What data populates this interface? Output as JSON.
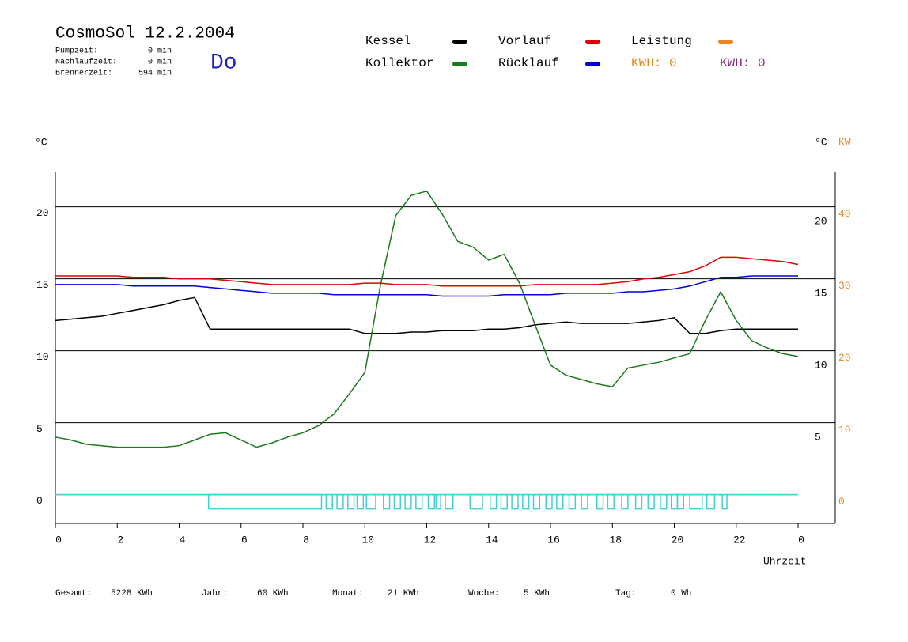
{
  "header": {
    "title": "CosmoSol 12.2.2004",
    "day": "Do",
    "stats": [
      {
        "label": "Pumpzeit:",
        "value": "0 min"
      },
      {
        "label": "Nachlaufzeit:",
        "value": "0 min"
      },
      {
        "label": "Brennerzeit:",
        "value": "594 min"
      }
    ]
  },
  "legend_extra": [
    {
      "text": "KWH: 0",
      "color": "#e08a1e"
    },
    {
      "text": "KWH: 0",
      "color": "#803080"
    }
  ],
  "footer": [
    {
      "label": "Gesamt:",
      "value": "5228 KWh"
    },
    {
      "label": "Jahr:",
      "value": "60 KWh"
    },
    {
      "label": "Monat:",
      "value": "21 KWh"
    },
    {
      "label": "Woche:",
      "value": "5 KWh"
    },
    {
      "label": "Tag:",
      "value": "0 Wh"
    }
  ],
  "chart_data": {
    "type": "line",
    "xlabel": "Uhrzeit",
    "ylabel": "°C",
    "y3label": "°C",
    "y2label": "KW",
    "y2color": "#e08a1e",
    "x": [
      0,
      0.5,
      1,
      1.5,
      2,
      2.5,
      3,
      3.5,
      4,
      4.5,
      5,
      5.5,
      6,
      6.5,
      7,
      7.5,
      8,
      8.5,
      9,
      9.5,
      10,
      10.5,
      11,
      11.5,
      12,
      12.5,
      13,
      13.5,
      14,
      14.5,
      15,
      15.5,
      16,
      16.5,
      17,
      17.5,
      18,
      18.5,
      19,
      19.5,
      20,
      20.5,
      21,
      21.5,
      22,
      22.5,
      23,
      23.5,
      24
    ],
    "xlim": [
      0,
      25.2
    ],
    "xticks": [
      0,
      2,
      4,
      6,
      8,
      10,
      12,
      14,
      16,
      18,
      20,
      22,
      {
        "value": 24,
        "label": "0"
      }
    ],
    "ylim": [
      -2,
      22.4
    ],
    "yticks": [
      0,
      5,
      10,
      15,
      20
    ],
    "y3lim": [
      -1,
      23.4
    ],
    "y3ticks": [
      5,
      10,
      15,
      20
    ],
    "y2lim": [
      -4,
      44.8
    ],
    "y2ticks": [
      0,
      10,
      20,
      30,
      40
    ],
    "grid": true,
    "series": [
      {
        "name": "Kessel",
        "color": "#000000",
        "values": [
          12.1,
          12.2,
          12.3,
          12.4,
          12.6,
          12.8,
          13.0,
          13.2,
          13.5,
          13.7,
          11.5,
          11.5,
          11.5,
          11.5,
          11.5,
          11.5,
          11.5,
          11.5,
          11.5,
          11.5,
          11.2,
          11.2,
          11.2,
          11.3,
          11.3,
          11.4,
          11.4,
          11.4,
          11.5,
          11.5,
          11.6,
          11.8,
          11.9,
          12.0,
          11.9,
          11.9,
          11.9,
          11.9,
          12.0,
          12.1,
          12.3,
          11.2,
          11.2,
          11.4,
          11.5,
          11.5,
          11.5,
          11.5,
          11.5
        ]
      },
      {
        "name": "Kollektor",
        "color": "#1a7a1a",
        "values": [
          4.0,
          3.8,
          3.5,
          3.4,
          3.3,
          3.3,
          3.3,
          3.3,
          3.4,
          3.8,
          4.2,
          4.3,
          3.8,
          3.3,
          3.6,
          4.0,
          4.3,
          4.8,
          5.6,
          7.0,
          8.5,
          14.5,
          19.4,
          20.8,
          21.1,
          19.5,
          17.6,
          17.2,
          16.3,
          16.7,
          14.7,
          11.8,
          9.0,
          8.3,
          8.0,
          7.7,
          7.5,
          8.8,
          9.0,
          9.2,
          9.5,
          9.8,
          12.1,
          14.1,
          12.1,
          10.7,
          10.2,
          9.8,
          9.6
        ]
      },
      {
        "name": "Vorlauf",
        "color": "#e00000",
        "values": [
          15.2,
          15.2,
          15.2,
          15.2,
          15.2,
          15.1,
          15.1,
          15.1,
          15.0,
          15.0,
          15.0,
          14.9,
          14.8,
          14.7,
          14.6,
          14.6,
          14.6,
          14.6,
          14.6,
          14.6,
          14.7,
          14.7,
          14.6,
          14.6,
          14.6,
          14.5,
          14.5,
          14.5,
          14.5,
          14.5,
          14.5,
          14.6,
          14.6,
          14.6,
          14.6,
          14.6,
          14.7,
          14.8,
          15.0,
          15.1,
          15.3,
          15.5,
          15.9,
          16.5,
          16.5,
          16.4,
          16.3,
          16.2,
          16.0
        ]
      },
      {
        "name": "Rücklauf",
        "color": "#0000e0",
        "values": [
          14.6,
          14.6,
          14.6,
          14.6,
          14.6,
          14.5,
          14.5,
          14.5,
          14.5,
          14.5,
          14.4,
          14.3,
          14.2,
          14.1,
          14.0,
          14.0,
          14.0,
          14.0,
          13.9,
          13.9,
          13.9,
          13.9,
          13.9,
          13.9,
          13.9,
          13.8,
          13.8,
          13.8,
          13.8,
          13.9,
          13.9,
          13.9,
          13.9,
          14.0,
          14.0,
          14.0,
          14.0,
          14.1,
          14.1,
          14.2,
          14.3,
          14.5,
          14.8,
          15.1,
          15.1,
          15.2,
          15.2,
          15.2,
          15.2
        ]
      },
      {
        "name": "Leistung",
        "color": "#f08020",
        "axis": "y2",
        "values": [
          0,
          0,
          0,
          0,
          0,
          0,
          0,
          0,
          0,
          0,
          0,
          0,
          0,
          0,
          0,
          0,
          0,
          0,
          0,
          0,
          0,
          0,
          0,
          0,
          0,
          0,
          0,
          0,
          0,
          0,
          0,
          0,
          0,
          0,
          0,
          0,
          0,
          0,
          0,
          0,
          0,
          0,
          0,
          0,
          0,
          0,
          0,
          0,
          0
        ]
      }
    ],
    "pump": {
      "color": "#40d0d8",
      "spans": [
        [
          4.95,
          8.6
        ],
        [
          8.75,
          8.95
        ],
        [
          9.1,
          9.3
        ],
        [
          9.45,
          9.65
        ],
        [
          9.75,
          9.95
        ],
        [
          10.05,
          10.35
        ],
        [
          10.6,
          10.8
        ],
        [
          10.95,
          11.15
        ],
        [
          11.3,
          11.5
        ],
        [
          11.65,
          11.85
        ],
        [
          12.05,
          12.25
        ],
        [
          12.3,
          12.45
        ],
        [
          12.6,
          12.85
        ],
        [
          13.4,
          13.8
        ],
        [
          14.05,
          14.25
        ],
        [
          14.4,
          14.6
        ],
        [
          14.75,
          14.95
        ],
        [
          15.1,
          15.3
        ],
        [
          15.45,
          15.65
        ],
        [
          15.85,
          16.05
        ],
        [
          16.2,
          16.4
        ],
        [
          16.6,
          16.8
        ],
        [
          17.0,
          17.2
        ],
        [
          17.5,
          17.7
        ],
        [
          17.85,
          18.05
        ],
        [
          18.3,
          18.5
        ],
        [
          18.75,
          18.95
        ],
        [
          19.15,
          19.35
        ],
        [
          19.55,
          19.75
        ],
        [
          19.9,
          20.1
        ],
        [
          20.1,
          20.3
        ],
        [
          20.5,
          20.9
        ],
        [
          21.05,
          21.3
        ],
        [
          21.55,
          21.7
        ]
      ]
    }
  }
}
